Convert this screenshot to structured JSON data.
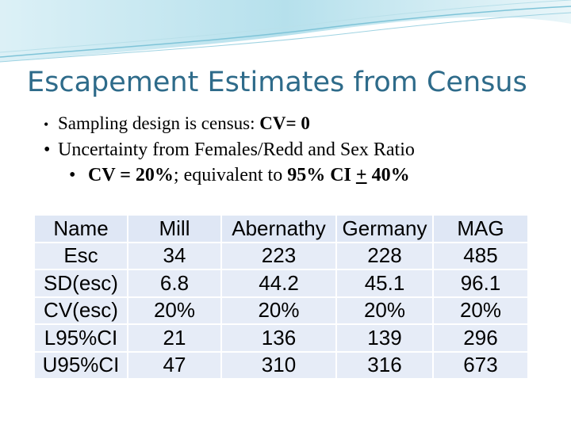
{
  "slide": {
    "title": "Escapement Estimates from Census",
    "bullets": [
      {
        "dot": "•",
        "text_a": "Sampling design is census: ",
        "text_b": "CV= 0"
      },
      {
        "dot": "•",
        "text_a": "Uncertainty from Females/Redd and Sex Ratio"
      },
      {
        "dot": "•",
        "text_a": "CV = 20%",
        "text_b": ";  equivalent to ",
        "text_c": "95% CI ",
        "text_d": "+",
        "text_e": " 40%"
      }
    ],
    "table": {
      "header": [
        "Name",
        "Mill",
        "Abernathy",
        "Germany",
        "MAG"
      ],
      "rows": [
        [
          "Esc",
          "34",
          "223",
          "228",
          "485"
        ],
        [
          "SD(esc)",
          "6.8",
          "44.2",
          "45.1",
          "96.1"
        ],
        [
          "CV(esc)",
          "20%",
          "20%",
          "20%",
          "20%"
        ],
        [
          "L95%CI",
          "21",
          "136",
          "139",
          "296"
        ],
        [
          "U95%CI",
          "47",
          "310",
          "316",
          "673"
        ]
      ]
    }
  },
  "colors": {
    "title": "#2e6b8a",
    "table_cell": "#e6ecf7",
    "banner_wave": "#bfe3ee"
  }
}
